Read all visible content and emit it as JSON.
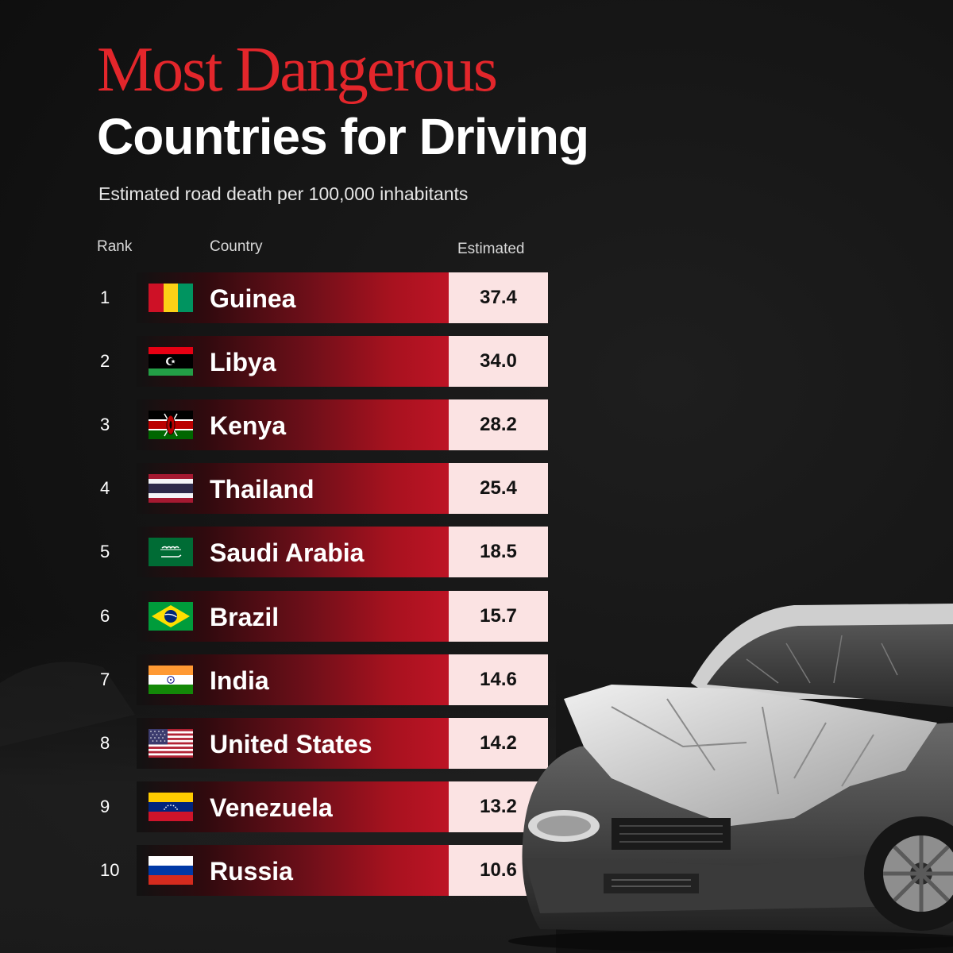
{
  "title_line1": "Most Dangerous",
  "title_line2": "Countries for Driving",
  "subtitle": "Estimated road death per 100,000 inhabitants",
  "headers": {
    "rank": "Rank",
    "country": "Country",
    "value": "Estimated"
  },
  "colors": {
    "title_red": "#e3262b",
    "bar_red": "#bd1425",
    "value_bg": "#fbe3e3",
    "background": "#141414"
  },
  "chart_data": {
    "type": "table",
    "title": "Most Dangerous Countries for Driving",
    "subtitle": "Estimated road death per 100,000 inhabitants",
    "columns": [
      "Rank",
      "Country",
      "Estimated"
    ],
    "rows": [
      {
        "rank": "1",
        "country": "Guinea",
        "value": "37.4",
        "flag": "guinea-flag"
      },
      {
        "rank": "2",
        "country": "Libya",
        "value": "34.0",
        "flag": "libya-flag"
      },
      {
        "rank": "3",
        "country": "Kenya",
        "value": "28.2",
        "flag": "kenya-flag"
      },
      {
        "rank": "4",
        "country": "Thailand",
        "value": "25.4",
        "flag": "thailand-flag"
      },
      {
        "rank": "5",
        "country": "Saudi Arabia",
        "value": "18.5",
        "flag": "saudi-arabia-flag"
      },
      {
        "rank": "6",
        "country": "Brazil",
        "value": "15.7",
        "flag": "brazil-flag"
      },
      {
        "rank": "7",
        "country": "India",
        "value": "14.6",
        "flag": "india-flag"
      },
      {
        "rank": "8",
        "country": "United States",
        "value": "14.2",
        "flag": "united-states-flag"
      },
      {
        "rank": "9",
        "country": "Venezuela",
        "value": "13.2",
        "flag": "venezuela-flag"
      },
      {
        "rank": "10",
        "country": "Russia",
        "value": "10.6",
        "flag": "russia-flag"
      }
    ]
  },
  "decoration": {
    "image": "wrecked-car-photo"
  }
}
